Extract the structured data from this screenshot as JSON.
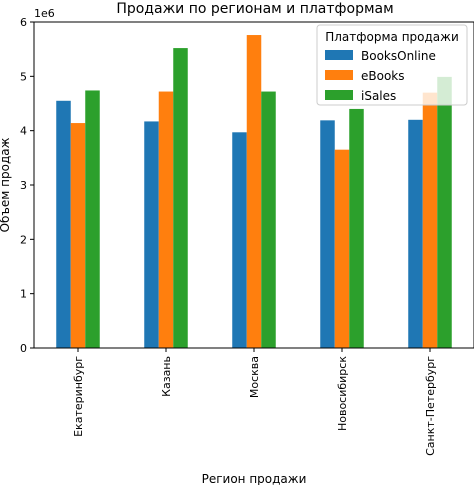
{
  "chart_data": {
    "type": "bar",
    "title": "Продажи по регионам и платформам",
    "xlabel": "Регион продажи",
    "ylabel": "Объем продаж",
    "y_scale_label": "1e6",
    "categories": [
      "Екатеринбург",
      "Казань",
      "Москва",
      "Новосибирск",
      "Санкт-Петербург"
    ],
    "ylim": [
      0,
      6
    ],
    "yticks": [
      0,
      1,
      2,
      3,
      4,
      5,
      6
    ],
    "legend_title": "Платформа продажи",
    "legend_position": "top-right",
    "grid": false,
    "series": [
      {
        "name": "BooksOnline",
        "color": "#1f77b4",
        "values": [
          4.55,
          4.17,
          3.97,
          4.19,
          4.2
        ]
      },
      {
        "name": "eBooks",
        "color": "#ff7f0e",
        "values": [
          4.14,
          4.72,
          5.76,
          3.65,
          4.7
        ]
      },
      {
        "name": "iSales",
        "color": "#2ca02c",
        "values": [
          4.74,
          5.52,
          4.72,
          4.4,
          4.99
        ]
      }
    ]
  }
}
